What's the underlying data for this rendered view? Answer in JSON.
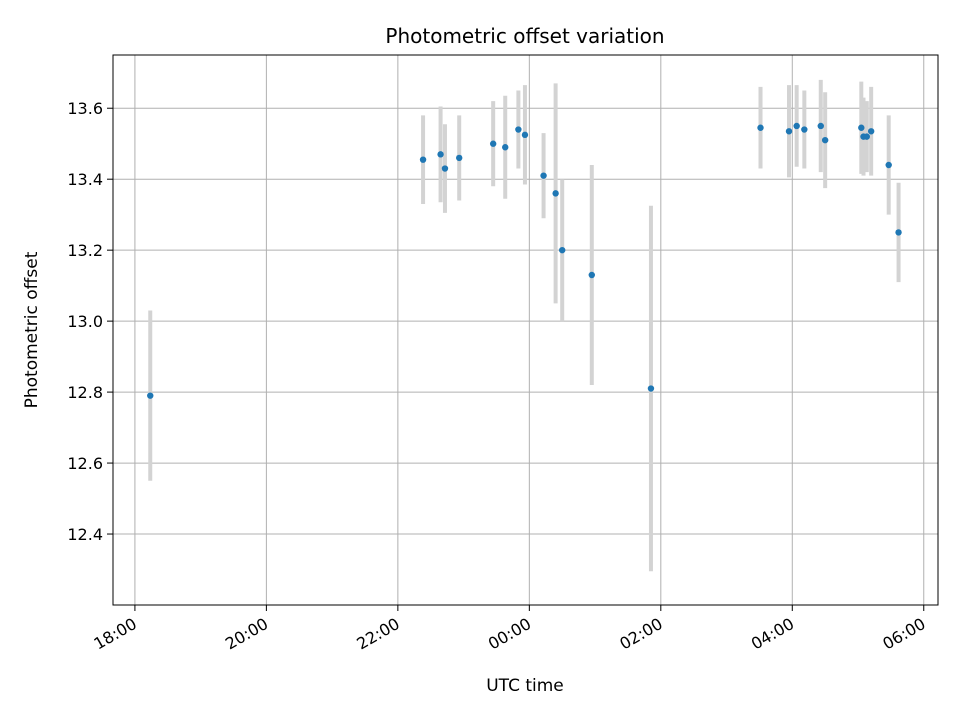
{
  "chart_data": {
    "type": "scatter",
    "title": "Photometric offset variation",
    "xlabel": "UTC time",
    "ylabel": "Photometric offset",
    "x_ticks": [
      "18:00",
      "20:00",
      "22:00",
      "00:00",
      "02:00",
      "04:00",
      "06:00"
    ],
    "y_ticks": [
      "12.4",
      "12.6",
      "12.8",
      "13.0",
      "13.2",
      "13.4",
      "13.6"
    ],
    "ylim": [
      12.2,
      13.75
    ],
    "xlim_time": [
      "17:40",
      "06:13 (+1 day)"
    ],
    "grid": true,
    "colors": {
      "points": "#1f77b4",
      "errorbars": "#d3d3d3",
      "grid": "#b0b0b0"
    },
    "series": [
      {
        "points": [
          {
            "t": "18:14",
            "y": 12.79,
            "err": 0.24
          },
          {
            "t": "22:23",
            "y": 13.455,
            "err": 0.125
          },
          {
            "t": "22:39",
            "y": 13.47,
            "err": 0.135
          },
          {
            "t": "22:43",
            "y": 13.43,
            "err": 0.125
          },
          {
            "t": "22:56",
            "y": 13.46,
            "err": 0.12
          },
          {
            "t": "23:27",
            "y": 13.5,
            "err": 0.12
          },
          {
            "t": "23:38",
            "y": 13.49,
            "err": 0.145
          },
          {
            "t": "23:50",
            "y": 13.54,
            "err": 0.11
          },
          {
            "t": "23:56",
            "y": 13.525,
            "err": 0.14
          },
          {
            "t": "00:13",
            "y": 13.41,
            "err": 0.12
          },
          {
            "t": "00:24",
            "y": 13.36,
            "err": 0.31
          },
          {
            "t": "00:30",
            "y": 13.2,
            "err": 0.2
          },
          {
            "t": "00:57",
            "y": 13.13,
            "err": 0.31
          },
          {
            "t": "01:51",
            "y": 12.81,
            "err": 0.515
          },
          {
            "t": "03:31",
            "y": 13.545,
            "err": 0.115
          },
          {
            "t": "03:57",
            "y": 13.535,
            "err": 0.13
          },
          {
            "t": "04:04",
            "y": 13.55,
            "err": 0.115
          },
          {
            "t": "04:11",
            "y": 13.54,
            "err": 0.11
          },
          {
            "t": "04:26",
            "y": 13.55,
            "err": 0.13
          },
          {
            "t": "04:30",
            "y": 13.51,
            "err": 0.135
          },
          {
            "t": "05:03",
            "y": 13.545,
            "err": 0.13
          },
          {
            "t": "05:05",
            "y": 13.52,
            "err": 0.11
          },
          {
            "t": "05:08",
            "y": 13.52,
            "err": 0.1
          },
          {
            "t": "05:12",
            "y": 13.535,
            "err": 0.125
          },
          {
            "t": "05:28",
            "y": 13.44,
            "err": 0.14
          },
          {
            "t": "05:37",
            "y": 13.25,
            "err": 0.14
          }
        ]
      }
    ]
  }
}
